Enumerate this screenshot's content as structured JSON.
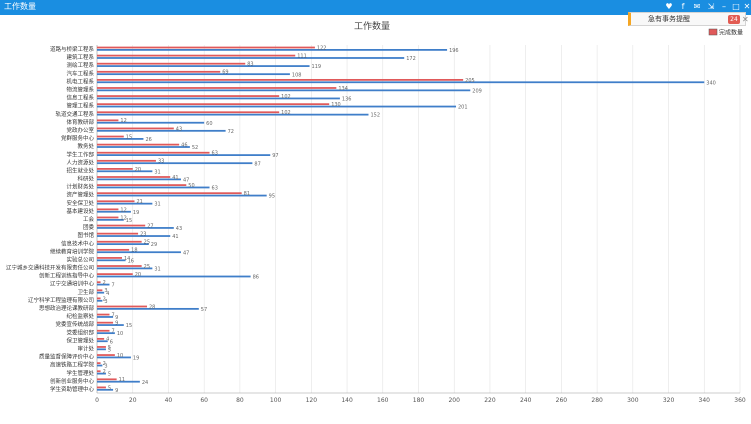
{
  "window": {
    "title": "工作数量",
    "controls": [
      "heart-icon",
      "facebook-icon",
      "bell-icon",
      "expand-icon",
      "minimize-icon",
      "maximize-icon",
      "close-icon"
    ]
  },
  "notice": {
    "label": "急有事务提醒",
    "count": "24",
    "accent": "#f5a623",
    "badge_color": "#e25b52"
  },
  "chart_data": {
    "type": "bar",
    "orientation": "horizontal",
    "title": "工作数量",
    "legend": [
      "完成数量"
    ],
    "legend_position": "top-right",
    "xlim": [
      0,
      360
    ],
    "xticks": [
      0,
      20,
      40,
      60,
      80,
      100,
      120,
      140,
      160,
      180,
      200,
      220,
      240,
      260,
      280,
      300,
      320,
      340,
      360
    ],
    "grid": true,
    "categories": [
      "道路与桥梁工程系",
      "建筑工程系",
      "测绘工程系",
      "汽车工程系",
      "机电工程系",
      "物流管理系",
      "信息工程系",
      "管理工程系",
      "轨道交通工程系",
      "体育教研部",
      "党政办公室",
      "党群服务中心",
      "教务处",
      "学生工作部",
      "人力资源处",
      "招生就业处",
      "科研处",
      "计划财务处",
      "资产管理处",
      "安全保卫处",
      "基本建设处",
      "工会",
      "团委",
      "图书馆",
      "信息技术中心",
      "继续教育培训学院",
      "实验总公司",
      "辽宁城乡交通科技开发有限责任公司",
      "创新工程训练指导中心",
      "辽宁交通培训中心",
      "卫生部",
      "辽宁科学工程监理有限公司",
      "思想政治理论课教研部",
      "纪检监察处",
      "党委宣传统战部",
      "党委组织部",
      "保卫管理处",
      "审计处",
      "质量监督保障评价中心",
      "高速铁路工程学院",
      "学生管理处",
      "创新创业服务中心",
      "学生资助管理中心"
    ],
    "series": [
      {
        "name": "完成数量",
        "color": "#e0595a",
        "values": [
          122,
          111,
          83,
          69,
          205,
          134,
          102,
          130,
          102,
          12,
          43,
          15,
          46,
          63,
          33,
          20,
          41,
          50,
          81,
          21,
          12,
          12,
          27,
          23,
          25,
          18,
          14,
          25,
          20,
          2,
          3,
          2,
          28,
          7,
          9,
          7,
          4,
          5,
          10,
          2,
          2,
          11,
          5
        ]
      },
      {
        "name": "",
        "color": "#3f7ec9",
        "values": [
          196,
          172,
          119,
          108,
          340,
          209,
          136,
          201,
          152,
          60,
          72,
          26,
          52,
          97,
          87,
          31,
          47,
          63,
          95,
          31,
          19,
          15,
          43,
          41,
          29,
          47,
          16,
          31,
          86,
          7,
          4,
          3,
          57,
          9,
          15,
          10,
          6,
          5,
          19,
          3,
          5,
          24,
          9
        ]
      }
    ],
    "value_labels": {
      "blue": [
        "196",
        "172",
        "119",
        "108",
        "340",
        "209",
        "136",
        "201",
        "152",
        "60",
        "72",
        "26",
        "52",
        "97",
        "87",
        "31",
        "47",
        "63",
        "95",
        "31",
        "19",
        "15",
        "43",
        "41",
        "29",
        "47",
        "16",
        "31",
        "86",
        "7",
        "4",
        "3",
        "57",
        "9",
        "15",
        "10",
        "6",
        "5",
        "19",
        "3",
        "5",
        "24",
        "9"
      ],
      "red": [
        "122",
        "111",
        "83",
        "69",
        "205",
        "134",
        "102",
        "130",
        "102",
        "12",
        "43",
        "15",
        "46",
        "63",
        "33",
        "20",
        "41",
        "50",
        "81",
        "21",
        "12",
        "12",
        "27",
        "23",
        "25",
        "18",
        "14",
        "25",
        "20",
        "2",
        "3",
        "2",
        "28",
        "7",
        "9",
        "7",
        "4",
        "5",
        "10",
        "2",
        "2",
        "11",
        "5"
      ]
    }
  }
}
